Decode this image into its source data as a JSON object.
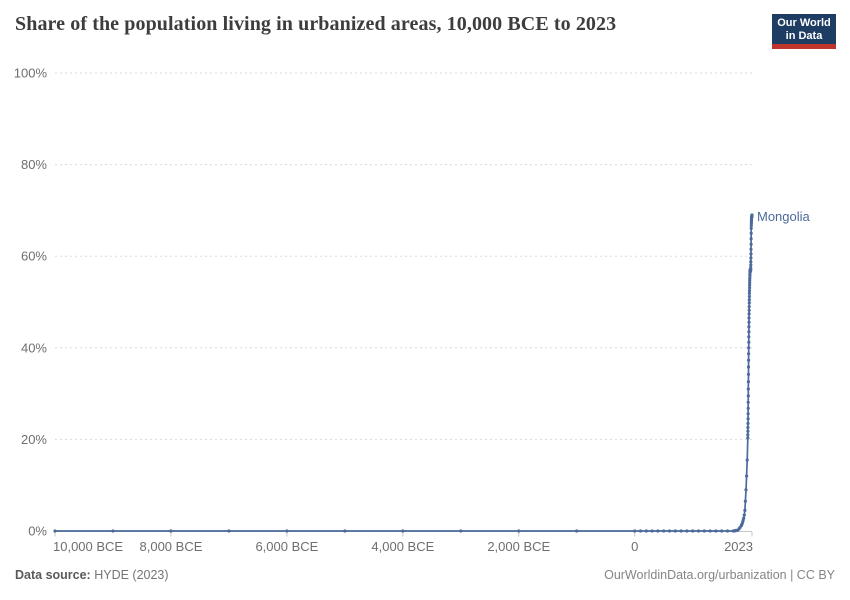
{
  "header": {
    "title": "Share of the population living in urbanized areas, 10,000 BCE to 2023",
    "logo": {
      "line1": "Our World",
      "line2": "in Data"
    }
  },
  "footer": {
    "source_label": "Data source:",
    "source_value": " HYDE (2023)",
    "credit": "OurWorldinData.org/urbanization | CC BY"
  },
  "colors": {
    "line": "#4C6A9C",
    "entity_label": "#4C6A9C",
    "logo_bg": "#1D3D63",
    "logo_red": "#C0362C",
    "grid": "#DADADA",
    "axis_line": "#C6C6C6",
    "axis_text": "#6E6E6E",
    "title_text": "#3D3D3D"
  },
  "chart_data": {
    "type": "line",
    "title": "Share of the population living in urbanized areas, 10,000 BCE to 2023",
    "entity": "Mongolia",
    "xlabel": "",
    "ylabel": "",
    "xlim": [
      -10000,
      2023
    ],
    "ylim": [
      0,
      100
    ],
    "grid": "dashed-horizontal",
    "legend_position": "end-of-line-label",
    "y_ticks": [
      {
        "value": 0,
        "label": "0%"
      },
      {
        "value": 20,
        "label": "20%"
      },
      {
        "value": 40,
        "label": "40%"
      },
      {
        "value": 60,
        "label": "60%"
      },
      {
        "value": 80,
        "label": "80%"
      },
      {
        "value": 100,
        "label": "100%"
      }
    ],
    "x_ticks": [
      {
        "value": -10000,
        "label": "10,000 BCE",
        "align": "start"
      },
      {
        "value": -8000,
        "label": "8,000 BCE",
        "align": "middle"
      },
      {
        "value": -6000,
        "label": "6,000 BCE",
        "align": "middle"
      },
      {
        "value": -4000,
        "label": "4,000 BCE",
        "align": "middle"
      },
      {
        "value": -2000,
        "label": "2,000 BCE",
        "align": "middle"
      },
      {
        "value": 0,
        "label": "0",
        "align": "middle"
      },
      {
        "value": 2023,
        "label": "2023",
        "align": "end"
      }
    ],
    "series": [
      {
        "name": "Mongolia",
        "color": "#4C6A9C",
        "points": [
          [
            -10000,
            0
          ],
          [
            -9000,
            0
          ],
          [
            -8000,
            0
          ],
          [
            -7000,
            0
          ],
          [
            -6000,
            0
          ],
          [
            -5000,
            0
          ],
          [
            -4000,
            0
          ],
          [
            -3000,
            0
          ],
          [
            -2000,
            0
          ],
          [
            -1000,
            0
          ],
          [
            0,
            0
          ],
          [
            100,
            0
          ],
          [
            200,
            0
          ],
          [
            300,
            0
          ],
          [
            400,
            0
          ],
          [
            500,
            0
          ],
          [
            600,
            0
          ],
          [
            700,
            0
          ],
          [
            800,
            0
          ],
          [
            900,
            0
          ],
          [
            1000,
            0
          ],
          [
            1100,
            0
          ],
          [
            1200,
            0
          ],
          [
            1300,
            0
          ],
          [
            1400,
            0
          ],
          [
            1500,
            0
          ],
          [
            1600,
            0
          ],
          [
            1700,
            0
          ],
          [
            1720,
            0
          ],
          [
            1740,
            0.1
          ],
          [
            1760,
            0.1
          ],
          [
            1780,
            0.2
          ],
          [
            1800,
            0.5
          ],
          [
            1820,
            0.8
          ],
          [
            1840,
            1.2
          ],
          [
            1850,
            1.5
          ],
          [
            1860,
            1.9
          ],
          [
            1870,
            2.3
          ],
          [
            1880,
            2.8
          ],
          [
            1890,
            3.5
          ],
          [
            1900,
            4.5
          ],
          [
            1910,
            6.5
          ],
          [
            1920,
            9.0
          ],
          [
            1930,
            12.0
          ],
          [
            1940,
            15.5
          ],
          [
            1950,
            20.3
          ],
          [
            1951,
            21.0
          ],
          [
            1952,
            21.8
          ],
          [
            1953,
            22.6
          ],
          [
            1954,
            23.5
          ],
          [
            1955,
            24.5
          ],
          [
            1956,
            25.6
          ],
          [
            1957,
            26.8
          ],
          [
            1958,
            28.1
          ],
          [
            1959,
            29.5
          ],
          [
            1960,
            31.0
          ],
          [
            1961,
            32.6
          ],
          [
            1962,
            34.2
          ],
          [
            1963,
            35.8
          ],
          [
            1964,
            37.3
          ],
          [
            1965,
            38.7
          ],
          [
            1966,
            40.0
          ],
          [
            1967,
            41.2
          ],
          [
            1968,
            42.4
          ],
          [
            1969,
            43.5
          ],
          [
            1970,
            44.6
          ],
          [
            1971,
            45.6
          ],
          [
            1972,
            46.5
          ],
          [
            1973,
            47.4
          ],
          [
            1974,
            48.2
          ],
          [
            1975,
            49.0
          ],
          [
            1976,
            49.8
          ],
          [
            1977,
            50.5
          ],
          [
            1978,
            51.2
          ],
          [
            1979,
            51.9
          ],
          [
            1980,
            52.5
          ],
          [
            1981,
            53.1
          ],
          [
            1982,
            53.7
          ],
          [
            1983,
            54.2
          ],
          [
            1984,
            54.7
          ],
          [
            1985,
            55.2
          ],
          [
            1986,
            55.7
          ],
          [
            1987,
            56.1
          ],
          [
            1988,
            56.5
          ],
          [
            1989,
            56.8
          ],
          [
            1990,
            57.0
          ],
          [
            1991,
            57.0
          ],
          [
            1992,
            56.9
          ],
          [
            1993,
            56.8
          ],
          [
            1994,
            56.8
          ],
          [
            1995,
            56.7
          ],
          [
            1996,
            56.7
          ],
          [
            1997,
            56.8
          ],
          [
            1998,
            56.9
          ],
          [
            1999,
            57.0
          ],
          [
            2000,
            57.1
          ],
          [
            2001,
            57.5
          ],
          [
            2002,
            58.1
          ],
          [
            2003,
            58.8
          ],
          [
            2004,
            59.6
          ],
          [
            2005,
            60.5
          ],
          [
            2006,
            61.5
          ],
          [
            2007,
            62.6
          ],
          [
            2008,
            63.8
          ],
          [
            2009,
            65.0
          ],
          [
            2010,
            66.1
          ],
          [
            2011,
            66.7
          ],
          [
            2012,
            67.2
          ],
          [
            2013,
            67.6
          ],
          [
            2014,
            67.9
          ],
          [
            2015,
            68.2
          ],
          [
            2016,
            68.4
          ],
          [
            2017,
            68.5
          ],
          [
            2018,
            68.6
          ],
          [
            2019,
            68.7
          ],
          [
            2020,
            68.7
          ],
          [
            2021,
            68.8
          ],
          [
            2022,
            68.9
          ],
          [
            2023,
            69.0
          ]
        ]
      }
    ]
  }
}
